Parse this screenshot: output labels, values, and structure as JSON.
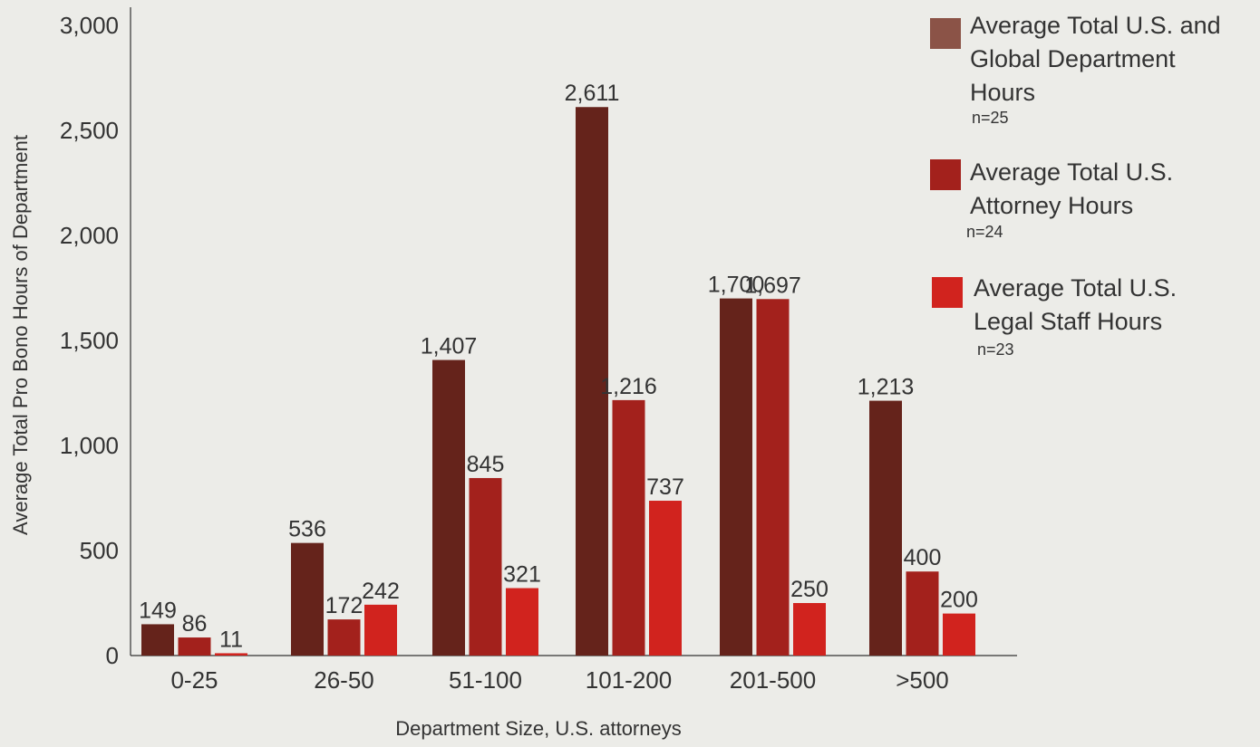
{
  "chart_data": {
    "type": "bar",
    "xlabel": "Department Size, U.S. attorneys",
    "ylabel": "Average Total Pro Bono Hours of Department",
    "ylim": [
      0,
      3000
    ],
    "yticks": [
      0,
      500,
      1000,
      1500,
      2000,
      2500,
      3000
    ],
    "ytick_labels": [
      "0",
      "500",
      "1,000",
      "1,500",
      "2,000",
      "2,500",
      "3,000"
    ],
    "grid": false,
    "legend_position": "top-right",
    "categories": [
      "0-25",
      "26-50",
      "51-100",
      "101-200",
      "201-500",
      ">500"
    ],
    "series": [
      {
        "name": "Average Total U.S. and Global Department Hours",
        "n": "n=25",
        "color": "#65231b",
        "legend_color": "#8b5347",
        "values": [
          149,
          536,
          1407,
          2611,
          1700,
          1213
        ],
        "labels": [
          "149",
          "536",
          "1,407",
          "2,611",
          "1,700",
          "1,213"
        ]
      },
      {
        "name": "Average Total U.S. Attorney Hours",
        "n": "n=24",
        "color": "#a3211c",
        "legend_color": "#a3211c",
        "values": [
          86,
          172,
          845,
          1216,
          1697,
          400
        ],
        "labels": [
          "86",
          "172",
          "845",
          "1,216",
          "1,697",
          "400"
        ]
      },
      {
        "name": "Average Total U.S. Legal Staff Hours",
        "n": "n=23",
        "color": "#d1231e",
        "legend_color": "#d1231e",
        "values": [
          11,
          242,
          321,
          737,
          250,
          200
        ],
        "labels": [
          "11",
          "242",
          "321",
          "737",
          "250",
          "200"
        ]
      }
    ]
  },
  "legend": {
    "items": [
      {
        "lines": [
          "Average Total U.S. and",
          "Global Department",
          "Hours"
        ],
        "n": "n=25"
      },
      {
        "lines": [
          "Average Total U.S.",
          "Attorney Hours"
        ],
        "n": "n=24"
      },
      {
        "lines": [
          "Average Total U.S.",
          "Legal Staff Hours"
        ],
        "n": "n=23"
      }
    ]
  }
}
